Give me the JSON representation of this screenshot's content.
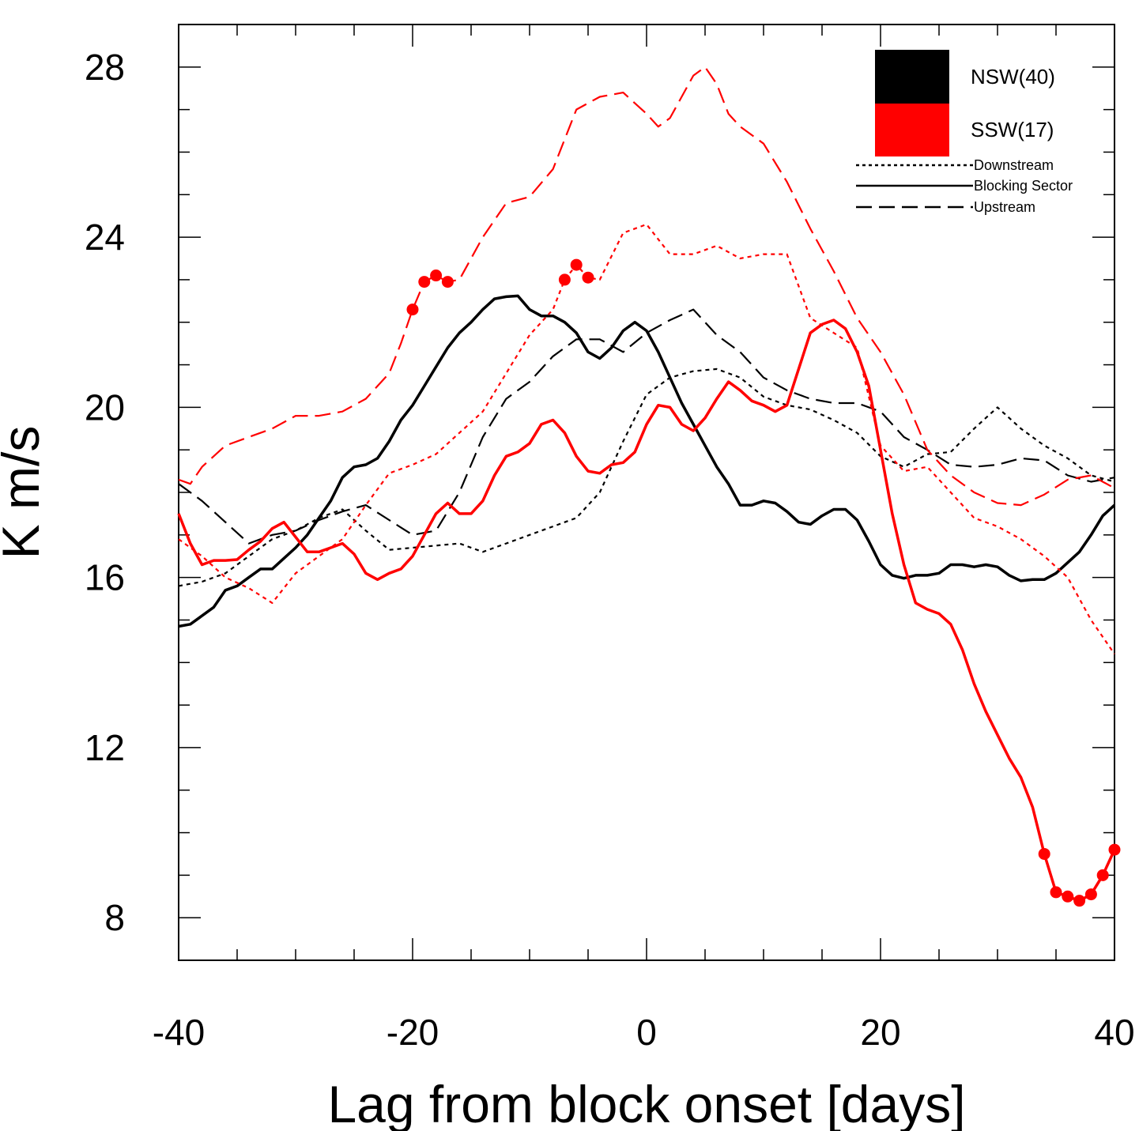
{
  "chart_data": {
    "type": "line",
    "xlabel": "Lag from block onset [days]",
    "ylabel": "K m/s",
    "xlim": [
      -40,
      40
    ],
    "ylim": [
      7,
      29
    ],
    "xticks": [
      -40,
      -20,
      0,
      20,
      40
    ],
    "xtick_labels": [
      "-40",
      "-20",
      "0",
      "20",
      "40"
    ],
    "yticks": [
      8,
      12,
      16,
      20,
      24,
      28
    ],
    "ytick_labels": [
      "8",
      "12",
      "16",
      "20",
      "24",
      "28"
    ],
    "grid": false,
    "legend_position": "top-right",
    "legend": {
      "groups": [
        {
          "label": "NSW(40)",
          "color": "#000000"
        },
        {
          "label": "SSW(17)",
          "color": "#ff0000"
        }
      ],
      "sectors": [
        {
          "label": "Downstream",
          "dash": "dotted"
        },
        {
          "label": "Blocking Sector",
          "dash": "solid"
        },
        {
          "label": "Upstream",
          "dash": "dashed"
        }
      ]
    },
    "series": [
      {
        "group": "NSW(40)",
        "sector": "Blocking Sector",
        "color": "#000000",
        "x": [
          -40,
          -39,
          -38,
          -37,
          -36,
          -35,
          -34,
          -33,
          -32,
          -31,
          -30,
          -29,
          -28,
          -27,
          -26,
          -25,
          -24,
          -23,
          -22,
          -21,
          -20,
          -19,
          -18,
          -17,
          -16,
          -15,
          -14,
          -13,
          -12,
          -11,
          -10,
          -9,
          -8,
          -7,
          -6,
          -5,
          -4,
          -3,
          -2,
          -1,
          0,
          1,
          2,
          3,
          4,
          5,
          6,
          7,
          8,
          9,
          10,
          11,
          12,
          13,
          14,
          15,
          16,
          17,
          18,
          19,
          20,
          21,
          22,
          23,
          24,
          25,
          26,
          27,
          28,
          29,
          30,
          31,
          32,
          33,
          34,
          35,
          36,
          37,
          38,
          39,
          40
        ],
        "y": [
          14.85,
          14.9,
          15.1,
          15.3,
          15.7,
          15.8,
          16.0,
          16.2,
          16.2,
          16.45,
          16.7,
          17.0,
          17.4,
          17.8,
          18.35,
          18.6,
          18.65,
          18.8,
          19.2,
          19.7,
          20.05,
          20.5,
          20.95,
          21.4,
          21.75,
          22.0,
          22.3,
          22.55,
          22.6,
          22.62,
          22.3,
          22.15,
          22.15,
          22.0,
          21.75,
          21.3,
          21.15,
          21.4,
          21.8,
          22.0,
          21.8,
          21.3,
          20.7,
          20.1,
          19.6,
          19.1,
          18.6,
          18.2,
          17.7,
          17.7,
          17.8,
          17.75,
          17.55,
          17.3,
          17.25,
          17.45,
          17.6,
          17.6,
          17.35,
          16.85,
          16.3,
          16.05,
          15.98,
          16.05,
          16.05,
          16.1,
          16.3,
          16.3,
          16.25,
          16.3,
          16.25,
          16.05,
          15.92,
          15.95,
          15.95,
          16.1,
          16.35,
          16.6,
          17.0,
          17.45,
          17.7
        ],
        "markers_x": []
      },
      {
        "group": "NSW(40)",
        "sector": "Downstream",
        "color": "#000000",
        "x": [
          -40,
          -38,
          -36,
          -34,
          -32,
          -30,
          -28,
          -26,
          -24,
          -22,
          -20,
          -18,
          -16,
          -14,
          -12,
          -10,
          -8,
          -6,
          -4,
          -2,
          0,
          2,
          4,
          6,
          8,
          10,
          12,
          14,
          16,
          18,
          20,
          22,
          24,
          26,
          28,
          30,
          32,
          34,
          36,
          38,
          40
        ],
        "y": [
          15.8,
          15.9,
          16.1,
          16.5,
          16.9,
          17.1,
          17.4,
          17.6,
          17.1,
          16.65,
          16.7,
          16.75,
          16.8,
          16.6,
          16.8,
          17.0,
          17.2,
          17.4,
          18.0,
          19.2,
          20.3,
          20.7,
          20.85,
          20.9,
          20.7,
          20.25,
          20.05,
          19.95,
          19.7,
          19.4,
          18.85,
          18.6,
          18.9,
          18.95,
          19.5,
          20.0,
          19.5,
          19.1,
          18.8,
          18.4,
          18.25
        ],
        "markers_x": []
      },
      {
        "group": "NSW(40)",
        "sector": "Upstream",
        "color": "#000000",
        "x": [
          -40,
          -38,
          -36,
          -34,
          -32,
          -30,
          -28,
          -26,
          -24,
          -22,
          -20,
          -18,
          -16,
          -14,
          -12,
          -10,
          -8,
          -6,
          -4,
          -2,
          0,
          2,
          4,
          6,
          8,
          10,
          12,
          14,
          16,
          18,
          20,
          22,
          24,
          26,
          28,
          30,
          32,
          34,
          36,
          38,
          40
        ],
        "y": [
          18.2,
          17.8,
          17.3,
          16.8,
          17.0,
          17.1,
          17.35,
          17.55,
          17.7,
          17.35,
          17.0,
          17.1,
          18.0,
          19.3,
          20.2,
          20.6,
          21.2,
          21.6,
          21.6,
          21.3,
          21.75,
          22.05,
          22.3,
          21.7,
          21.3,
          20.7,
          20.4,
          20.2,
          20.1,
          20.1,
          19.9,
          19.3,
          19.0,
          18.65,
          18.6,
          18.65,
          18.8,
          18.75,
          18.4,
          18.25,
          18.35
        ],
        "markers_x": []
      },
      {
        "group": "SSW(17)",
        "sector": "Blocking Sector",
        "color": "#ff0000",
        "x": [
          -40,
          -39,
          -38,
          -37,
          -36,
          -35,
          -34,
          -33,
          -32,
          -31,
          -30,
          -29,
          -28,
          -27,
          -26,
          -25,
          -24,
          -23,
          -22,
          -21,
          -20,
          -19,
          -18,
          -17,
          -16,
          -15,
          -14,
          -13,
          -12,
          -11,
          -10,
          -9,
          -8,
          -7,
          -6,
          -5,
          -4,
          -3,
          -2,
          -1,
          0,
          1,
          2,
          3,
          4,
          5,
          6,
          7,
          8,
          9,
          10,
          11,
          12,
          13,
          14,
          15,
          16,
          17,
          18,
          19,
          20,
          21,
          22,
          23,
          24,
          25,
          26,
          27,
          28,
          29,
          30,
          31,
          32,
          33,
          34,
          35,
          36,
          37,
          38,
          39,
          40
        ],
        "y": [
          17.5,
          16.8,
          16.3,
          16.4,
          16.4,
          16.42,
          16.65,
          16.85,
          17.15,
          17.3,
          16.95,
          16.6,
          16.6,
          16.7,
          16.8,
          16.55,
          16.1,
          15.95,
          16.1,
          16.2,
          16.5,
          17.0,
          17.5,
          17.75,
          17.5,
          17.5,
          17.8,
          18.4,
          18.85,
          18.95,
          19.15,
          19.6,
          19.7,
          19.4,
          18.85,
          18.5,
          18.45,
          18.65,
          18.7,
          18.95,
          19.6,
          20.05,
          20.0,
          19.6,
          19.45,
          19.75,
          20.2,
          20.6,
          20.4,
          20.15,
          20.05,
          19.9,
          20.05,
          20.9,
          21.75,
          21.95,
          22.05,
          21.85,
          21.3,
          20.5,
          19.0,
          17.5,
          16.3,
          15.4,
          15.25,
          15.15,
          14.9,
          14.3,
          13.5,
          12.85,
          12.3,
          11.75,
          11.3,
          10.6,
          9.5,
          8.6,
          8.5,
          8.4,
          8.55,
          9.0,
          9.6
        ],
        "markers_x": [
          34,
          35,
          36,
          37,
          38,
          39,
          40
        ]
      },
      {
        "group": "SSW(17)",
        "sector": "Downstream",
        "color": "#ff0000",
        "x": [
          -40,
          -38,
          -36,
          -34,
          -32,
          -30,
          -28,
          -26,
          -24,
          -22,
          -20,
          -18,
          -16,
          -14,
          -12,
          -10,
          -8,
          -7,
          -6,
          -5,
          -4,
          -2,
          0,
          2,
          4,
          6,
          8,
          10,
          12,
          14,
          16,
          18,
          20,
          22,
          24,
          26,
          28,
          30,
          32,
          34,
          36,
          38,
          40
        ],
        "y": [
          16.9,
          16.5,
          16.0,
          15.75,
          15.4,
          16.1,
          16.5,
          16.9,
          17.7,
          18.45,
          18.65,
          18.9,
          19.4,
          19.9,
          20.8,
          21.7,
          22.3,
          23.0,
          23.35,
          23.05,
          23.0,
          24.1,
          24.3,
          23.6,
          23.6,
          23.8,
          23.5,
          23.6,
          23.6,
          22.1,
          21.75,
          21.4,
          19.1,
          18.5,
          18.6,
          18.0,
          17.4,
          17.2,
          16.9,
          16.5,
          16.0,
          15.0,
          14.2
        ],
        "markers_x": [
          -7,
          -6,
          -5
        ]
      },
      {
        "group": "SSW(17)",
        "sector": "Upstream",
        "color": "#ff0000",
        "x": [
          -40,
          -39,
          -38,
          -36,
          -34,
          -32,
          -30,
          -28,
          -26,
          -24,
          -22,
          -21,
          -20,
          -19,
          -18,
          -17,
          -16,
          -14,
          -12,
          -10,
          -8,
          -6,
          -4,
          -2,
          0,
          1,
          2,
          3,
          4,
          5,
          6,
          7,
          8,
          10,
          12,
          14,
          16,
          18,
          20,
          22,
          24,
          26,
          28,
          30,
          32,
          34,
          36,
          38,
          40
        ],
        "y": [
          18.3,
          18.2,
          18.6,
          19.1,
          19.3,
          19.5,
          19.8,
          19.8,
          19.9,
          20.2,
          20.8,
          21.5,
          22.3,
          22.95,
          23.1,
          22.95,
          23.0,
          24.0,
          24.8,
          24.95,
          25.6,
          27.0,
          27.3,
          27.4,
          26.9,
          26.6,
          26.8,
          27.3,
          27.8,
          28.0,
          27.6,
          26.9,
          26.6,
          26.2,
          25.3,
          24.2,
          23.2,
          22.1,
          21.3,
          20.3,
          19.0,
          18.4,
          18.0,
          17.75,
          17.7,
          17.95,
          18.3,
          18.4,
          18.1
        ],
        "markers_x": [
          -20,
          -19,
          -18,
          -17
        ]
      }
    ]
  }
}
